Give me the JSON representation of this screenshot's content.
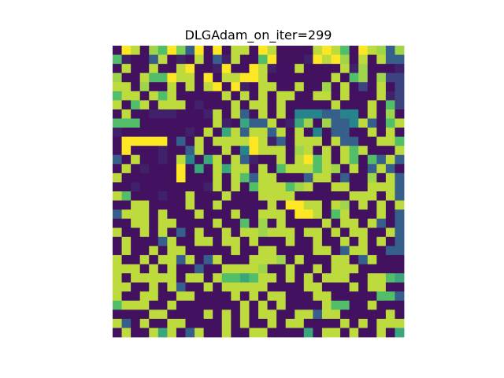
{
  "chart_data": {
    "type": "heatmap",
    "title": "DLGAdam_on_iter=299",
    "xlabel": "",
    "ylabel": "",
    "axes_visible": false,
    "colormap": "viridis",
    "vmin": 0,
    "vmax": 1,
    "rows": 32,
    "cols": 32,
    "values": [
      [
        0.05,
        1.0,
        0.9,
        0.05,
        0.85,
        0.7,
        1.0,
        0.8,
        0.3,
        1.0,
        0.05,
        1.0,
        0.05,
        0.9,
        0.9,
        0.05,
        1.0,
        0.9,
        0.05,
        0.05,
        0.05,
        0.05,
        0.9,
        1.0,
        0.9,
        0.7,
        0.05,
        1.0,
        0.9,
        0.85,
        0.3,
        0.85
      ],
      [
        0.7,
        0.1,
        0.05,
        0.05,
        0.3,
        0.9,
        0.05,
        0.1,
        0.05,
        0.9,
        0.05,
        0.3,
        0.1,
        0.9,
        0.05,
        0.05,
        0.7,
        1.0,
        0.05,
        0.05,
        0.05,
        0.1,
        1.0,
        0.9,
        1.0,
        0.85,
        0.05,
        0.9,
        0.05,
        0.9,
        0.3,
        0.3
      ],
      [
        0.05,
        0.9,
        0.05,
        0.05,
        0.9,
        0.05,
        0.05,
        0.9,
        1.0,
        0.05,
        0.05,
        0.1,
        1.0,
        0.05,
        0.05,
        1.0,
        0.9,
        0.1,
        0.05,
        0.05,
        0.9,
        0.05,
        0.05,
        0.05,
        0.05,
        0.9,
        0.1,
        0.85,
        0.05,
        0.05,
        0.05,
        0.1
      ],
      [
        0.85,
        0.05,
        0.05,
        0.9,
        0.7,
        0.7,
        1.0,
        0.9,
        0.9,
        0.05,
        1.0,
        0.05,
        0.9,
        0.9,
        1.0,
        1.0,
        0.9,
        0.05,
        0.05,
        0.05,
        0.05,
        0.05,
        0.05,
        0.05,
        0.9,
        0.05,
        0.7,
        0.85,
        0.05,
        0.85,
        0.2,
        0.2
      ],
      [
        0.9,
        0.9,
        0.05,
        0.85,
        0.05,
        0.05,
        0.9,
        0.05,
        0.9,
        0.05,
        0.9,
        1.0,
        0.05,
        1.0,
        0.1,
        0.05,
        0.9,
        0.9,
        0.05,
        0.05,
        0.9,
        0.05,
        0.05,
        0.85,
        0.05,
        0.9,
        0.05,
        0.2,
        0.05,
        0.9,
        0.05,
        0.2
      ],
      [
        0.7,
        0.9,
        0.9,
        0.05,
        0.9,
        0.7,
        0.9,
        0.05,
        0.05,
        0.05,
        0.05,
        0.05,
        0.9,
        0.05,
        0.9,
        0.05,
        0.9,
        0.05,
        0.9,
        0.9,
        0.05,
        0.05,
        0.9,
        0.9,
        0.05,
        0.9,
        0.05,
        0.05,
        0.05,
        0.9,
        0.1,
        0.2
      ],
      [
        0.9,
        0.05,
        0.7,
        0.9,
        0.05,
        0.9,
        0.9,
        0.9,
        0.05,
        0.1,
        0.05,
        0.05,
        0.05,
        0.9,
        0.05,
        0.9,
        0.9,
        0.05,
        0.9,
        0.05,
        0.05,
        0.05,
        0.05,
        0.05,
        0.9,
        0.05,
        0.05,
        0.05,
        0.9,
        0.05,
        0.7,
        0.2
      ],
      [
        0.05,
        0.9,
        0.05,
        0.05,
        0.1,
        0.1,
        0.1,
        0.05,
        0.05,
        0.05,
        0.1,
        0.9,
        0.05,
        0.9,
        0.3,
        0.05,
        0.9,
        0.05,
        0.9,
        0.05,
        0.45,
        0.45,
        0.45,
        0.3,
        0.3,
        0.45,
        0.45,
        0.05,
        0.9,
        0.05,
        0.85,
        0.05
      ],
      [
        0.7,
        0.7,
        0.7,
        0.05,
        0.05,
        0.05,
        0.05,
        0.05,
        0.05,
        0.05,
        0.05,
        0.9,
        0.1,
        0.05,
        0.6,
        0.3,
        0.3,
        0.9,
        0.05,
        0.1,
        0.6,
        0.85,
        0.05,
        0.85,
        0.3,
        0.3,
        0.45,
        0.9,
        0.3,
        0.05,
        0.7,
        0.9
      ],
      [
        0.1,
        0.05,
        0.05,
        0.05,
        0.05,
        0.05,
        0.05,
        0.05,
        0.1,
        0.05,
        0.9,
        0.05,
        0.6,
        0.9,
        0.3,
        0.9,
        0.9,
        0.3,
        0.9,
        0.05,
        0.9,
        0.05,
        0.45,
        0.05,
        0.3,
        0.3,
        0.05,
        0.05,
        0.9,
        0.05,
        0.9,
        0.05
      ],
      [
        0.05,
        1.0,
        1.0,
        1.0,
        1.0,
        1.0,
        0.05,
        0.3,
        0.05,
        0.9,
        0.05,
        0.9,
        0.9,
        0.9,
        0.9,
        1.0,
        0.9,
        0.1,
        0.3,
        0.05,
        0.9,
        0.9,
        0.9,
        0.05,
        0.9,
        0.3,
        0.3,
        0.05,
        0.05,
        0.9,
        0.9,
        0.7
      ],
      [
        0.05,
        1.0,
        0.05,
        0.05,
        0.05,
        0.1,
        0.05,
        0.05,
        0.3,
        0.9,
        0.05,
        0.05,
        0.9,
        0.05,
        0.45,
        1.0,
        0.9,
        0.9,
        0.9,
        0.05,
        0.85,
        0.9,
        0.05,
        0.9,
        0.05,
        0.9,
        0.7,
        0.9,
        0.05,
        0.05,
        0.05,
        0.9
      ],
      [
        0.3,
        0.05,
        0.9,
        0.05,
        0.05,
        0.1,
        0.05,
        0.9,
        0.45,
        0.05,
        0.6,
        0.9,
        0.05,
        0.9,
        0.3,
        0.1,
        0.05,
        0.05,
        0.9,
        0.05,
        0.9,
        1.0,
        0.7,
        0.9,
        0.05,
        0.9,
        0.7,
        0.05,
        0.7,
        0.3,
        0.9,
        0.3
      ],
      [
        0.05,
        0.9,
        0.05,
        0.1,
        0.05,
        0.05,
        0.05,
        1.0,
        0.05,
        0.6,
        0.05,
        0.9,
        0.6,
        0.9,
        0.9,
        0.05,
        0.9,
        0.05,
        0.7,
        0.9,
        0.9,
        0.9,
        0.7,
        0.9,
        0.85,
        0.05,
        0.9,
        0.05,
        0.3,
        0.9,
        0.3,
        0.05
      ],
      [
        0.9,
        0.05,
        0.05,
        0.05,
        0.05,
        0.05,
        0.05,
        1.0,
        0.05,
        0.05,
        0.05,
        0.9,
        0.05,
        0.9,
        0.7,
        0.3,
        0.9,
        0.9,
        0.05,
        0.05,
        0.05,
        0.3,
        0.9,
        0.9,
        0.05,
        0.3,
        0.05,
        0.05,
        0.85,
        0.05,
        0.9,
        0.3
      ],
      [
        0.05,
        0.05,
        0.1,
        0.05,
        0.05,
        0.05,
        0.05,
        0.05,
        0.05,
        0.05,
        0.1,
        0.9,
        0.05,
        0.9,
        0.05,
        0.7,
        0.9,
        0.9,
        0.9,
        0.7,
        0.85,
        0.9,
        0.05,
        0.05,
        0.9,
        0.9,
        0.05,
        0.05,
        0.9,
        0.9,
        0.9,
        0.3
      ],
      [
        0.9,
        0.7,
        0.05,
        0.05,
        0.05,
        0.1,
        0.05,
        0.05,
        0.9,
        0.05,
        0.05,
        0.05,
        0.9,
        0.05,
        0.05,
        0.05,
        0.9,
        0.9,
        0.9,
        0.9,
        0.05,
        0.05,
        0.05,
        0.05,
        0.05,
        0.05,
        0.9,
        0.9,
        0.9,
        0.05,
        0.9,
        0.3
      ],
      [
        0.05,
        0.05,
        0.9,
        0.9,
        0.05,
        0.05,
        0.05,
        0.05,
        0.9,
        0.05,
        0.05,
        0.9,
        0.05,
        0.05,
        0.05,
        0.05,
        0.05,
        0.9,
        0.05,
        1.0,
        1.0,
        0.9,
        0.9,
        0.05,
        0.9,
        0.85,
        0.05,
        0.9,
        0.05,
        0.9,
        0.05,
        0.9
      ],
      [
        0.3,
        0.9,
        0.9,
        0.9,
        0.05,
        0.9,
        0.05,
        0.05,
        0.05,
        0.9,
        0.05,
        0.05,
        0.05,
        0.9,
        0.05,
        0.05,
        0.9,
        0.9,
        0.9,
        0.05,
        1.0,
        1.0,
        0.9,
        0.05,
        0.7,
        0.9,
        0.05,
        0.05,
        0.05,
        0.9,
        0.05,
        0.3
      ],
      [
        0.05,
        0.05,
        0.9,
        0.9,
        0.05,
        0.9,
        0.9,
        0.05,
        0.05,
        0.05,
        0.05,
        0.9,
        0.05,
        0.05,
        0.7,
        0.05,
        0.85,
        0.05,
        0.9,
        0.05,
        0.05,
        0.05,
        0.05,
        0.9,
        0.05,
        0.9,
        0.9,
        0.05,
        0.9,
        0.3,
        0.05,
        0.3
      ],
      [
        0.9,
        0.05,
        0.05,
        0.9,
        0.05,
        0.9,
        0.05,
        0.3,
        0.05,
        0.9,
        0.05,
        0.05,
        0.9,
        0.05,
        0.9,
        0.9,
        0.85,
        0.9,
        0.9,
        0.9,
        0.05,
        0.9,
        0.9,
        0.05,
        0.9,
        0.05,
        0.9,
        0.9,
        0.05,
        0.05,
        0.9,
        0.3
      ],
      [
        0.05,
        0.9,
        0.05,
        0.05,
        0.05,
        0.3,
        0.9,
        0.05,
        0.05,
        0.9,
        0.9,
        0.05,
        0.9,
        0.9,
        0.05,
        0.9,
        0.05,
        0.05,
        0.05,
        0.9,
        0.05,
        0.05,
        0.9,
        0.05,
        0.05,
        0.9,
        0.05,
        0.9,
        0.05,
        0.9,
        0.05,
        0.3
      ],
      [
        0.05,
        0.9,
        0.05,
        0.05,
        0.9,
        0.05,
        0.9,
        0.9,
        0.05,
        0.05,
        0.05,
        0.05,
        0.05,
        0.9,
        0.05,
        0.05,
        0.9,
        0.9,
        0.05,
        0.05,
        0.05,
        0.05,
        0.9,
        0.9,
        0.05,
        0.3,
        0.9,
        0.9,
        0.05,
        0.05,
        0.3,
        0.3
      ],
      [
        0.9,
        0.05,
        0.05,
        0.9,
        0.05,
        0.9,
        0.9,
        0.3,
        0.9,
        0.05,
        0.3,
        0.9,
        0.05,
        0.05,
        0.05,
        0.9,
        0.9,
        0.9,
        0.85,
        0.05,
        0.9,
        0.05,
        0.05,
        0.05,
        0.9,
        0.9,
        0.05,
        0.3,
        0.9,
        0.05,
        0.05,
        0.05
      ],
      [
        0.9,
        0.9,
        0.9,
        0.05,
        0.9,
        0.05,
        0.9,
        0.05,
        0.05,
        0.3,
        0.05,
        0.05,
        0.9,
        0.9,
        0.9,
        0.9,
        0.85,
        0.05,
        0.05,
        0.9,
        0.05,
        0.05,
        0.9,
        0.05,
        0.9,
        0.9,
        0.9,
        0.05,
        0.05,
        0.05,
        0.05,
        0.05
      ],
      [
        0.9,
        0.05,
        0.9,
        0.9,
        0.9,
        0.9,
        0.9,
        0.05,
        0.9,
        0.9,
        0.05,
        0.9,
        0.7,
        0.7,
        0.6,
        0.7,
        0.9,
        0.9,
        0.05,
        0.9,
        0.05,
        0.9,
        0.05,
        0.9,
        0.9,
        0.9,
        0.05,
        0.05,
        0.9,
        0.9,
        0.7,
        0.6
      ],
      [
        0.9,
        0.9,
        0.05,
        0.05,
        0.9,
        0.05,
        0.9,
        0.3,
        0.05,
        0.05,
        0.9,
        0.05,
        0.9,
        0.9,
        0.9,
        0.9,
        0.9,
        0.05,
        0.05,
        0.05,
        0.05,
        0.9,
        0.9,
        0.05,
        0.05,
        0.05,
        0.9,
        0.05,
        0.9,
        0.9,
        0.05,
        0.05
      ],
      [
        0.9,
        0.05,
        0.05,
        0.9,
        0.9,
        0.05,
        0.05,
        0.9,
        0.9,
        0.05,
        0.05,
        0.05,
        0.05,
        0.9,
        0.05,
        0.9,
        0.05,
        0.9,
        0.9,
        0.05,
        0.05,
        0.05,
        0.9,
        0.9,
        0.05,
        0.05,
        0.05,
        0.05,
        0.05,
        0.7,
        0.7,
        0.3
      ],
      [
        0.7,
        0.9,
        0.9,
        0.9,
        0.05,
        0.05,
        0.9,
        0.05,
        0.05,
        0.05,
        0.05,
        0.05,
        0.05,
        0.05,
        0.9,
        0.05,
        0.9,
        0.05,
        0.9,
        0.05,
        0.05,
        0.05,
        0.05,
        0.9,
        0.7,
        0.7,
        0.05,
        0.05,
        0.9,
        0.05,
        0.05,
        0.05
      ],
      [
        0.05,
        0.05,
        0.05,
        0.05,
        0.9,
        0.9,
        0.05,
        0.05,
        0.05,
        0.05,
        0.9,
        0.05,
        0.9,
        0.05,
        0.9,
        0.05,
        0.9,
        0.9,
        0.05,
        0.05,
        0.9,
        0.9,
        0.3,
        0.9,
        0.9,
        0.05,
        0.05,
        0.05,
        0.05,
        0.05,
        0.9,
        0.05
      ],
      [
        0.9,
        0.3,
        0.05,
        0.9,
        0.05,
        0.05,
        0.9,
        0.9,
        0.05,
        0.05,
        0.05,
        0.05,
        0.9,
        0.05,
        0.9,
        0.05,
        0.05,
        0.9,
        0.05,
        0.9,
        0.9,
        0.05,
        0.05,
        0.05,
        0.05,
        0.9,
        0.05,
        0.9,
        0.05,
        0.9,
        0.9,
        0.9
      ],
      [
        0.05,
        0.9,
        0.05,
        0.05,
        0.9,
        0.6,
        0.9,
        0.05,
        0.3,
        0.9,
        0.05,
        0.05,
        0.9,
        0.05,
        0.05,
        0.9,
        0.9,
        0.05,
        0.05,
        0.05,
        0.05,
        0.6,
        0.05,
        0.9,
        0.9,
        0.05,
        0.9,
        0.05,
        0.05,
        0.9,
        0.05,
        0.6
      ]
    ]
  }
}
